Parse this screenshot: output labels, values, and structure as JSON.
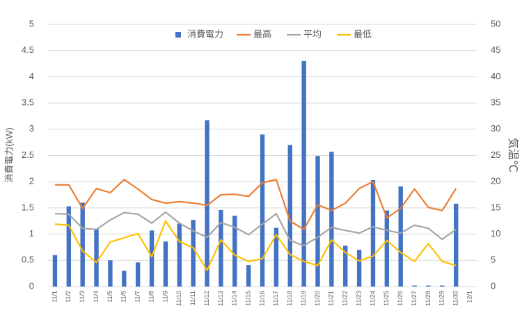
{
  "chart_data": {
    "type": "bar",
    "y_label": "消費電力(kW)",
    "y2_label": "気温℃",
    "categories": [
      "11/1",
      "11/2",
      "11/3",
      "11/4",
      "11/5",
      "11/6",
      "11/7",
      "11/8",
      "11/9",
      "11/10",
      "11/11",
      "11/12",
      "11/13",
      "11/14",
      "11/15",
      "11/16",
      "11/17",
      "11/18",
      "11/19",
      "11/20",
      "11/21",
      "11/22",
      "11/23",
      "11/24",
      "11/25",
      "11/26",
      "11/27",
      "11/28",
      "11/29",
      "11/30",
      "12/1"
    ],
    "series": [
      {
        "name": "消費電力",
        "type": "bar",
        "color": "#4472c4",
        "values": [
          0.6,
          1.53,
          1.6,
          1.1,
          0.5,
          0.3,
          0.46,
          1.07,
          0.86,
          1.2,
          1.27,
          3.17,
          1.46,
          1.35,
          0.41,
          2.9,
          1.12,
          2.7,
          4.3,
          2.49,
          2.57,
          0.78,
          0.7,
          2.03,
          1.45,
          1.91,
          0.02,
          0.02,
          0.02,
          1.58,
          null
        ]
      },
      {
        "name": "最高",
        "type": "line",
        "axis": "y2",
        "color": "#ed7d31",
        "values": [
          19.4,
          19.4,
          14.9,
          18.7,
          17.9,
          20.4,
          18.6,
          16.6,
          15.9,
          16.2,
          15.9,
          15.5,
          17.5,
          17.6,
          17.2,
          19.8,
          20.4,
          12.5,
          10.9,
          15.6,
          14.5,
          15.9,
          18.7,
          20.0,
          13.1,
          14.9,
          18.6,
          15.1,
          14.5,
          18.7,
          null
        ]
      },
      {
        "name": "平均",
        "type": "line",
        "axis": "y2",
        "color": "#a5a5a5",
        "values": [
          13.9,
          13.8,
          11.1,
          10.9,
          12.7,
          14.1,
          13.8,
          12.1,
          14.2,
          12.1,
          10.6,
          9.4,
          12.2,
          11.3,
          9.9,
          11.9,
          13.9,
          8.8,
          7.8,
          9.4,
          11.3,
          10.7,
          10.2,
          11.4,
          10.7,
          10.2,
          11.7,
          11.1,
          9.0,
          10.9,
          null
        ]
      },
      {
        "name": "最低",
        "type": "line",
        "axis": "y2",
        "color": "#ffc000",
        "values": [
          11.9,
          11.7,
          6.8,
          4.6,
          8.5,
          9.3,
          10.1,
          5.7,
          12.5,
          8.6,
          7.4,
          3.1,
          8.9,
          6.0,
          4.8,
          5.3,
          9.9,
          6.1,
          4.8,
          4.0,
          8.9,
          6.5,
          4.9,
          5.8,
          8.8,
          6.5,
          4.8,
          8.2,
          4.8,
          4.0,
          null
        ]
      }
    ],
    "ylim": [
      0,
      5
    ],
    "yticks": [
      0,
      0.5,
      1,
      1.5,
      2,
      2.5,
      3,
      3.5,
      4,
      4.5,
      5
    ],
    "y2lim": [
      0,
      50
    ],
    "y2ticks": [
      0,
      5,
      10,
      15,
      20,
      25,
      30,
      35,
      40,
      45,
      50
    ],
    "grid": true,
    "legend": "top"
  }
}
